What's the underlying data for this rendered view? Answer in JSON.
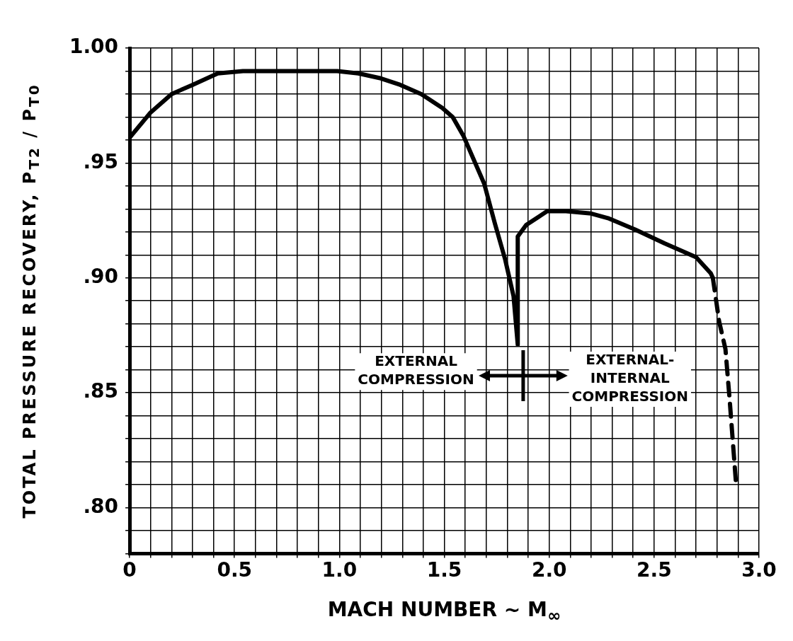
{
  "chart_data": {
    "type": "line",
    "xlabel": "MACH NUMBER ~ M$_{∞}$",
    "ylabel": "TOTAL PRESSURE RECOVERY, P$_{T2}$ / P$_{T0}$",
    "xlim": [
      0,
      3.0
    ],
    "ylim": [
      0.78,
      1.0
    ],
    "xticks": [
      0,
      {
        "value": 0.1,
        "label": null
      },
      {
        "value": 0.2,
        "label": null
      },
      {
        "value": 0.3,
        "label": null
      },
      {
        "value": 0.4,
        "label": null
      },
      0.5,
      {
        "value": 0.6,
        "label": null
      },
      {
        "value": 0.7,
        "label": null
      },
      {
        "value": 0.8,
        "label": null
      },
      {
        "value": 0.9,
        "label": null
      },
      {
        "value": 1.0,
        "label": "1.0"
      },
      {
        "value": 1.1,
        "label": null
      },
      {
        "value": 1.2,
        "label": null
      },
      {
        "value": 1.3,
        "label": null
      },
      {
        "value": 1.4,
        "label": null
      },
      1.5,
      {
        "value": 1.6,
        "label": null
      },
      {
        "value": 1.7,
        "label": null
      },
      {
        "value": 1.8,
        "label": null
      },
      {
        "value": 1.9,
        "label": null
      },
      {
        "value": 2.0,
        "label": "2.0"
      },
      {
        "value": 2.1,
        "label": null
      },
      {
        "value": 2.2,
        "label": null
      },
      {
        "value": 2.3,
        "label": null
      },
      {
        "value": 2.4,
        "label": null
      },
      2.5,
      {
        "value": 2.6,
        "label": null
      },
      {
        "value": 2.7,
        "label": null
      },
      {
        "value": 2.8,
        "label": null
      },
      {
        "value": 2.9,
        "label": null
      },
      {
        "value": 3.0,
        "label": "3.0"
      }
    ],
    "yticks": [
      {
        "value": 0.78,
        "label": null
      },
      {
        "value": 0.79,
        "label": null
      },
      {
        "value": 0.8,
        "label": ".80"
      },
      {
        "value": 0.81,
        "label": null
      },
      {
        "value": 0.82,
        "label": null
      },
      {
        "value": 0.83,
        "label": null
      },
      {
        "value": 0.84,
        "label": null
      },
      {
        "value": 0.85,
        "label": ".85"
      },
      {
        "value": 0.86,
        "label": null
      },
      {
        "value": 0.87,
        "label": null
      },
      {
        "value": 0.88,
        "label": null
      },
      {
        "value": 0.89,
        "label": null
      },
      {
        "value": 0.9,
        "label": ".90"
      },
      {
        "value": 0.91,
        "label": null
      },
      {
        "value": 0.92,
        "label": null
      },
      {
        "value": 0.93,
        "label": null
      },
      {
        "value": 0.94,
        "label": null
      },
      {
        "value": 0.95,
        "label": ".95"
      },
      {
        "value": 0.96,
        "label": null
      },
      {
        "value": 0.97,
        "label": null
      },
      {
        "value": 0.98,
        "label": null
      },
      {
        "value": 0.99,
        "label": null
      },
      {
        "value": 1.0,
        "label": "1.00"
      }
    ],
    "grid": true,
    "legend": false,
    "marker": "none",
    "series": [
      {
        "color": "#000000",
        "line_style": "solid",
        "x": [
          0,
          0.1,
          0.2,
          0.3,
          0.42,
          0.54,
          0.63,
          0.99,
          1.09,
          1.19,
          1.29,
          1.39,
          1.49,
          1.54,
          1.59,
          1.69,
          1.74,
          1.79,
          1.83,
          1.85,
          1.85,
          1.89,
          1.99,
          2.08,
          2.2,
          2.28,
          2.41,
          2.55,
          2.7,
          2.77,
          2.78
        ],
        "values": [
          0.961,
          0.972,
          0.98,
          0.984,
          0.989,
          0.99,
          0.99,
          0.99,
          0.989,
          0.987,
          0.984,
          0.98,
          0.974,
          0.97,
          0.962,
          0.941,
          0.924,
          0.908,
          0.892,
          0.871,
          0.918,
          0.923,
          0.929,
          0.929,
          0.928,
          0.926,
          0.921,
          0.915,
          0.909,
          0.902,
          0.9
        ]
      },
      {
        "color": "#000000",
        "line_style": "dashed",
        "x": [
          2.78,
          2.81,
          2.84,
          2.86,
          2.89
        ],
        "values": [
          0.9,
          0.881,
          0.869,
          0.847,
          0.811
        ]
      }
    ],
    "annotations": [
      "EXTERNAL COMPRESSION",
      "EXTERNAL-INTERNAL COMPRESSION"
    ]
  }
}
